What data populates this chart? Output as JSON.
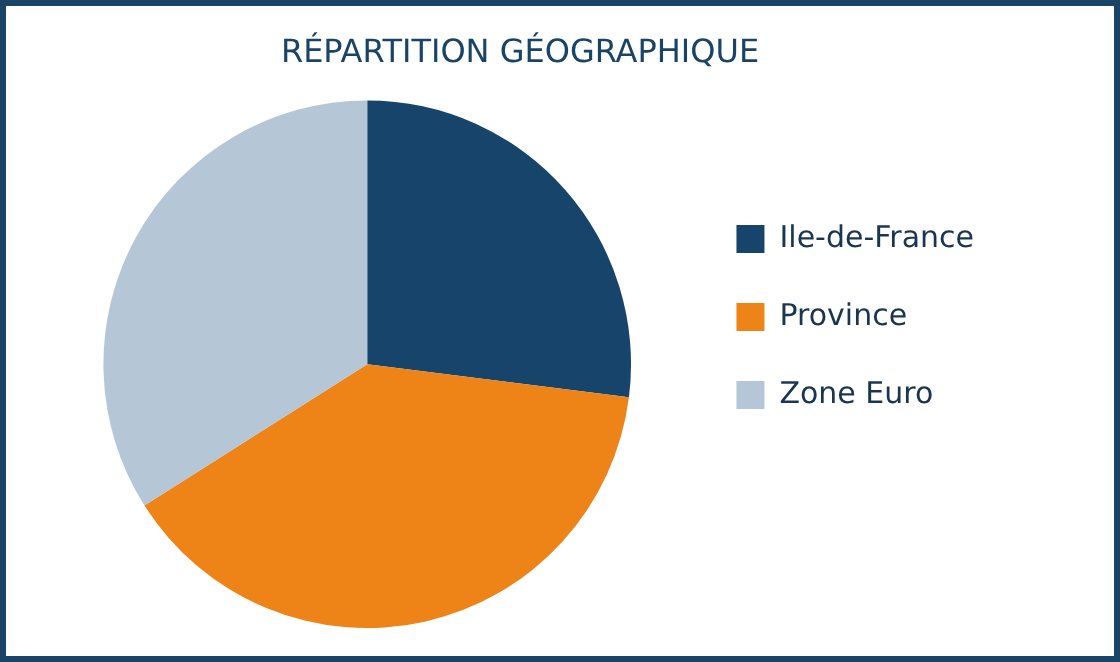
{
  "chart_data": {
    "type": "pie",
    "title": "RÉPARTITION GÉOGRAPHIQUE",
    "categories": [
      "Ile-de-France",
      "Province",
      "Zone Euro"
    ],
    "values": [
      27,
      39,
      34
    ],
    "colors": [
      "#17446a",
      "#ee8317",
      "#b5c6d6"
    ],
    "legend": "right"
  }
}
